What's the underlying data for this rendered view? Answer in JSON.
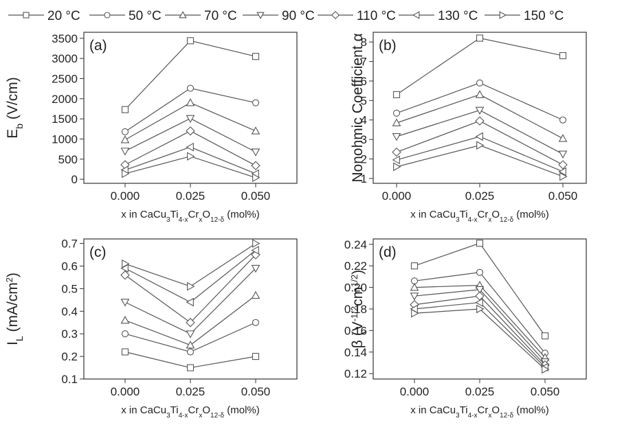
{
  "legend": {
    "entries": [
      {
        "label": "20 °C",
        "marker": "square"
      },
      {
        "label": "50 °C",
        "marker": "circle"
      },
      {
        "label": "70 °C",
        "marker": "triangle-up"
      },
      {
        "label": "90 °C",
        "marker": "triangle-down"
      },
      {
        "label": "110 °C",
        "marker": "diamond"
      },
      {
        "label": "130 °C",
        "marker": "triangle-left"
      },
      {
        "label": "150 °C",
        "marker": "triangle-right"
      }
    ]
  },
  "colors": {
    "line": "#555555",
    "marker_fill": "#ffffff",
    "axis": "#333333"
  },
  "chart_data": [
    {
      "type": "line",
      "panel_label": "(a)",
      "xlabel": {
        "pre": "x in CaCu",
        "s1": "3",
        "mid1": "Ti",
        "s2": "4-x",
        "mid2": "Cr",
        "s3": "x",
        "mid3": "O",
        "s4": "12-δ",
        "post": " (mol%)"
      },
      "ylabel": {
        "pre": "E",
        "sub": "b",
        "post": " (V/cm)"
      },
      "x": [
        0.0,
        0.025,
        0.05
      ],
      "xticks": [
        "0.000",
        "0.025",
        "0.050"
      ],
      "ylim": [
        -100,
        3650
      ],
      "yticks": [
        0,
        500,
        1000,
        1500,
        2000,
        2500,
        3000,
        3500
      ],
      "ytick_labels": [
        "0",
        "500",
        "1000",
        "1500",
        "2000",
        "2500",
        "3000",
        "3500"
      ],
      "series": [
        {
          "name": "20 °C",
          "values": [
            1730,
            3440,
            3050
          ]
        },
        {
          "name": "50 °C",
          "values": [
            1180,
            2260,
            1900
          ]
        },
        {
          "name": "70 °C",
          "values": [
            980,
            1900,
            1200
          ]
        },
        {
          "name": "90 °C",
          "values": [
            700,
            1510,
            680
          ]
        },
        {
          "name": "110 °C",
          "values": [
            360,
            1200,
            340
          ]
        },
        {
          "name": "130 °C",
          "values": [
            230,
            800,
            140
          ]
        },
        {
          "name": "150 °C",
          "values": [
            140,
            570,
            40
          ]
        }
      ]
    },
    {
      "type": "line",
      "panel_label": "(b)",
      "xlabel": {
        "pre": "x in CaCu",
        "s1": "3",
        "mid1": "Ti",
        "s2": "4-x",
        "mid2": "Cr",
        "s3": "x",
        "mid3": "O",
        "s4": "12-δ",
        "post": " (mol%)"
      },
      "ylabel": {
        "pre": "Nonohmic Coefficient α",
        "sub": "",
        "post": ""
      },
      "x": [
        0.0,
        0.025,
        0.05
      ],
      "xticks": [
        "0.000",
        "0.025",
        "0.050"
      ],
      "ylim": [
        0.75,
        8.5
      ],
      "yticks": [
        1,
        2,
        3,
        4,
        5,
        6,
        7,
        8
      ],
      "ytick_labels": [
        "1",
        "2",
        "3",
        "4",
        "5",
        "6",
        "7",
        "8"
      ],
      "series": [
        {
          "name": "20 °C",
          "values": [
            5.3,
            8.2,
            7.3
          ]
        },
        {
          "name": "50 °C",
          "values": [
            4.35,
            5.9,
            4.0
          ]
        },
        {
          "name": "70 °C",
          "values": [
            3.85,
            5.3,
            3.05
          ]
        },
        {
          "name": "90 °C",
          "values": [
            3.15,
            4.5,
            2.25
          ]
        },
        {
          "name": "110 °C",
          "values": [
            2.35,
            3.95,
            1.7
          ]
        },
        {
          "name": "130 °C",
          "values": [
            1.95,
            3.15,
            1.35
          ]
        },
        {
          "name": "150 °C",
          "values": [
            1.6,
            2.7,
            1.1
          ]
        }
      ]
    },
    {
      "type": "line",
      "panel_label": "(c)",
      "xlabel": {
        "pre": "x in CaCu",
        "s1": "3",
        "mid1": "Ti",
        "s2": "4-x",
        "mid2": "Cr",
        "s3": "x",
        "mid3": "O",
        "s4": "12-δ",
        "post": " (mol%)"
      },
      "ylabel": {
        "pre": "I",
        "sub": "L",
        "post": " (mA/cm",
        "sup": "2",
        "end": ")"
      },
      "x": [
        0.0,
        0.025,
        0.05
      ],
      "xticks": [
        "0.000",
        "0.025",
        "0.050"
      ],
      "ylim": [
        0.1,
        0.72
      ],
      "yticks": [
        0.1,
        0.2,
        0.3,
        0.4,
        0.5,
        0.6,
        0.7
      ],
      "ytick_labels": [
        "0.1",
        "0.2",
        "0.3",
        "0.4",
        "0.5",
        "0.6",
        "0.7"
      ],
      "series": [
        {
          "name": "20 °C",
          "values": [
            0.22,
            0.15,
            0.2
          ]
        },
        {
          "name": "50 °C",
          "values": [
            0.3,
            0.22,
            0.35
          ]
        },
        {
          "name": "70 °C",
          "values": [
            0.36,
            0.25,
            0.47
          ]
        },
        {
          "name": "90 °C",
          "values": [
            0.44,
            0.3,
            0.59
          ]
        },
        {
          "name": "110 °C",
          "values": [
            0.56,
            0.35,
            0.65
          ]
        },
        {
          "name": "130 °C",
          "values": [
            0.59,
            0.44,
            0.67
          ]
        },
        {
          "name": "150 °C",
          "values": [
            0.61,
            0.51,
            0.7
          ]
        }
      ]
    },
    {
      "type": "line",
      "panel_label": "(d)",
      "xlabel": {
        "pre": "x in CaCu",
        "s1": "3",
        "mid1": "Ti",
        "s2": "4-x",
        "mid2": "Cr",
        "s3": "x",
        "mid3": "O",
        "s4": "12-δ",
        "post": " (mol%)"
      },
      "ylabel": {
        "pre": "β (V",
        "sup": "-1/2",
        "mid": "cm",
        "sup2": "1/2",
        "post": ")"
      },
      "x": [
        0.0,
        0.025,
        0.05
      ],
      "xticks": [
        "0.000",
        "0.025",
        "0.050"
      ],
      "ylim": [
        0.115,
        0.245
      ],
      "yticks": [
        0.12,
        0.14,
        0.16,
        0.18,
        0.2,
        0.22,
        0.24
      ],
      "ytick_labels": [
        "0.12",
        "0.14",
        "0.16",
        "0.18",
        "0.20",
        "0.22",
        "0.24"
      ],
      "series": [
        {
          "name": "20 °C",
          "values": [
            0.22,
            0.241,
            0.155
          ]
        },
        {
          "name": "50 °C",
          "values": [
            0.206,
            0.214,
            0.139
          ]
        },
        {
          "name": "70 °C",
          "values": [
            0.2,
            0.202,
            0.135
          ]
        },
        {
          "name": "90 °C",
          "values": [
            0.192,
            0.198,
            0.131
          ]
        },
        {
          "name": "110 °C",
          "values": [
            0.184,
            0.192,
            0.128
          ]
        },
        {
          "name": "130 °C",
          "values": [
            0.18,
            0.186,
            0.126
          ]
        },
        {
          "name": "150 °C",
          "values": [
            0.176,
            0.18,
            0.124
          ]
        }
      ]
    }
  ]
}
